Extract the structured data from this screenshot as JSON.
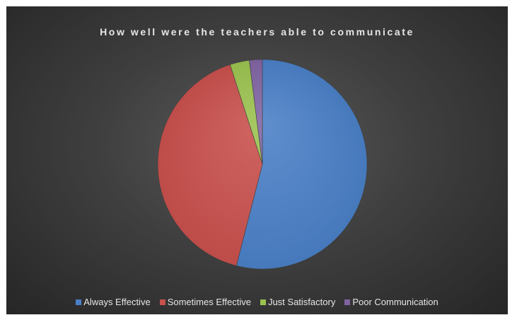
{
  "chart_data": {
    "type": "pie",
    "title": "How well were the teachers able to communicate",
    "categories": [
      "Always Effective",
      "Sometimes Effective",
      "Just Satisfactory",
      "Poor Communication"
    ],
    "values": [
      54,
      41,
      3,
      2
    ],
    "colors": [
      "#4a7fc6",
      "#c8504d",
      "#9bc24f",
      "#8064a2"
    ],
    "legend_position": "bottom"
  }
}
